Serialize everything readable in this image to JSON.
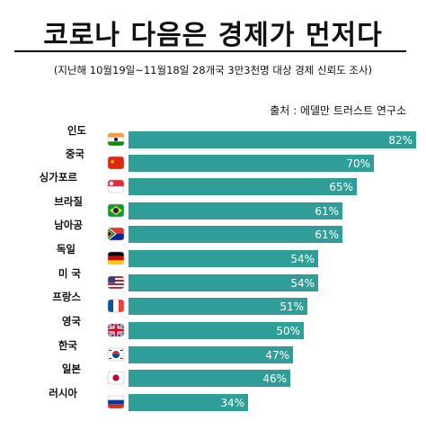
{
  "title": "코로나 다음은 경제가 먼저다",
  "subtitle": "(지난해 10월19일~11월18일 28개국 3만3천명 대상 경제 신뢰도 조사)",
  "source": "출처 : 에델만 트러스트 연구소",
  "colors": {
    "bar": "#2f9e98",
    "label_text": "#ffffff"
  },
  "chart_data": {
    "type": "bar",
    "orientation": "horizontal",
    "categories": [
      "인도",
      "중국",
      "싱가포르",
      "브라질",
      "남아공",
      "독일",
      "미 국",
      "프랑스",
      "영국",
      "한국",
      "일본",
      "러시아"
    ],
    "flags": [
      "india-flag",
      "china-flag",
      "singapore-flag",
      "brazil-flag",
      "south-africa-flag",
      "germany-flag",
      "usa-flag",
      "france-flag",
      "uk-flag",
      "korea-flag",
      "japan-flag",
      "russia-flag"
    ],
    "values": [
      82,
      70,
      65,
      61,
      61,
      54,
      54,
      51,
      50,
      47,
      46,
      34
    ],
    "value_labels": [
      "82%",
      "70%",
      "65%",
      "61%",
      "61%",
      "54%",
      "54%",
      "51%",
      "50%",
      "47%",
      "46%",
      "34%"
    ],
    "xlim": [
      0,
      82
    ],
    "grid": false
  }
}
